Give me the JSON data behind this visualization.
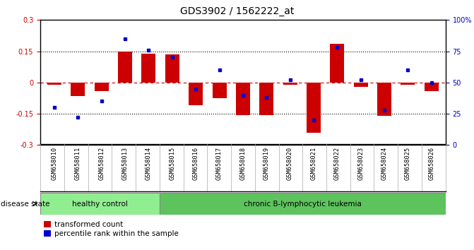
{
  "title": "GDS3902 / 1562222_at",
  "samples": [
    "GSM658010",
    "GSM658011",
    "GSM658012",
    "GSM658013",
    "GSM658014",
    "GSM658015",
    "GSM658016",
    "GSM658017",
    "GSM658018",
    "GSM658019",
    "GSM658020",
    "GSM658021",
    "GSM658022",
    "GSM658023",
    "GSM658024",
    "GSM658025",
    "GSM658026"
  ],
  "red_bars": [
    -0.01,
    -0.065,
    -0.04,
    0.148,
    0.14,
    0.135,
    -0.11,
    -0.075,
    -0.155,
    -0.155,
    -0.01,
    -0.24,
    0.185,
    -0.02,
    -0.16,
    -0.01,
    -0.04
  ],
  "blue_dots_percentile": [
    30,
    22,
    35,
    85,
    76,
    70,
    45,
    60,
    40,
    38,
    52,
    20,
    78,
    52,
    28,
    60,
    50
  ],
  "healthy_control_count": 5,
  "chronic_leukemia_count": 12,
  "color_hc": "#90EE90",
  "color_cl": "#5DC45D",
  "bar_color": "#CC0000",
  "dot_color": "#0000CC",
  "right_yaxis_color": "#0000BB",
  "left_yaxis_color": "#CC0000",
  "ylim_left": [
    -0.3,
    0.3
  ],
  "ylim_right": [
    0,
    100
  ],
  "yticks_left": [
    -0.3,
    -0.15,
    0.0,
    0.15,
    0.3
  ],
  "ytick_labels_left": [
    "-0.3",
    "-0.15",
    "0",
    "0.15",
    "0.3"
  ],
  "yticks_right": [
    0,
    25,
    50,
    75,
    100
  ],
  "ytick_labels_right": [
    "0",
    "25",
    "50",
    "75",
    "100%"
  ],
  "legend_labels": [
    "transformed count",
    "percentile rank within the sample"
  ],
  "disease_state_label": "disease state",
  "group1_label": "healthy control",
  "group2_label": "chronic B-lymphocytic leukemia",
  "bar_width": 0.6
}
